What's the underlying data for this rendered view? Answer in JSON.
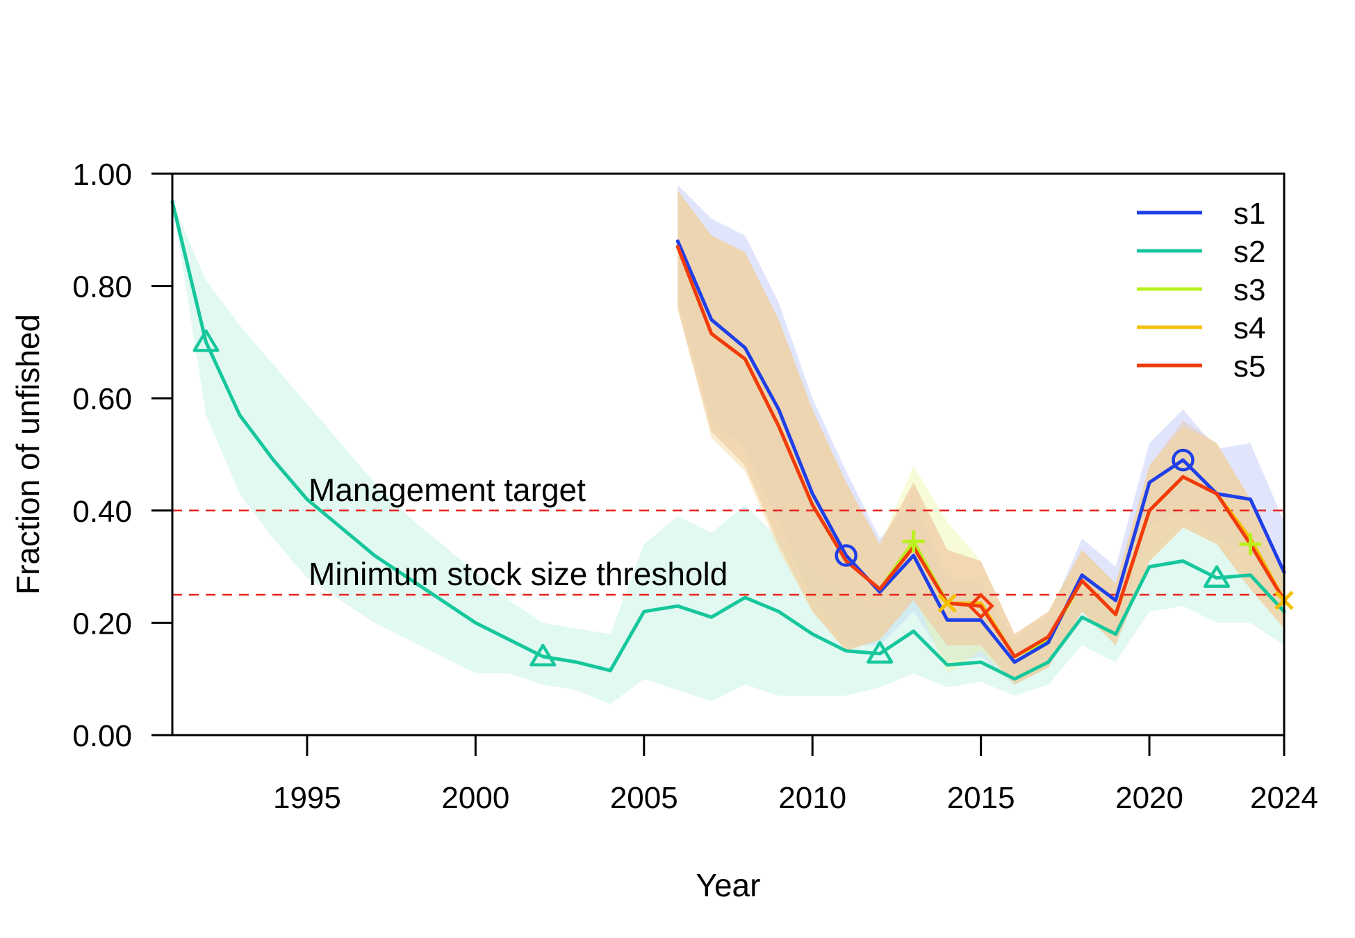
{
  "chart_data": {
    "type": "line",
    "xlabel": "Year",
    "ylabel": "Fraction of unfished",
    "xlim": [
      1991,
      2024
    ],
    "ylim": [
      0,
      1.0
    ],
    "x_ticks": [
      1995,
      2000,
      2005,
      2010,
      2015,
      2020,
      2024
    ],
    "x_tick_labels": [
      "1995",
      "2000",
      "2005",
      "2010",
      "2015",
      "2020",
      "2024"
    ],
    "y_ticks": [
      0,
      0.2,
      0.4,
      0.6,
      0.8,
      1.0
    ],
    "y_tick_labels": [
      "0.00",
      "0.20",
      "0.40",
      "0.60",
      "0.80",
      "1.00"
    ],
    "reference_lines": [
      {
        "label": "Management target",
        "y": 0.4,
        "color": "#E8231C",
        "style": "dashed"
      },
      {
        "label": "Minimum stock size threshold",
        "y": 0.25,
        "color": "#E8231C",
        "style": "dashed"
      },
      {
        "label": "",
        "y": 1.0,
        "color": "#BBBBBB",
        "style": "dashed"
      }
    ],
    "legend_position": "top-right",
    "series": [
      {
        "name": "s1",
        "color": "#1F3FE8",
        "band_color": "#AAB4F5",
        "marker": "circle",
        "marker_x": [
          2011,
          2021
        ],
        "x": [
          2006,
          2007,
          2008,
          2009,
          2010,
          2011,
          2012,
          2013,
          2014,
          2015,
          2016,
          2017,
          2018,
          2019,
          2020,
          2021,
          2022,
          2023,
          2024
        ],
        "values": [
          0.88,
          0.74,
          0.69,
          0.58,
          0.43,
          0.32,
          0.255,
          0.32,
          0.205,
          0.205,
          0.13,
          0.165,
          0.285,
          0.24,
          0.45,
          0.49,
          0.43,
          0.42,
          0.29
        ],
        "lower": [
          0.78,
          0.56,
          0.51,
          0.38,
          0.24,
          0.16,
          0.16,
          0.22,
          0.13,
          0.14,
          0.09,
          0.12,
          0.22,
          0.18,
          0.37,
          0.4,
          0.35,
          0.33,
          0.21
        ],
        "upper": [
          0.98,
          0.92,
          0.89,
          0.77,
          0.6,
          0.47,
          0.35,
          0.42,
          0.28,
          0.27,
          0.17,
          0.21,
          0.35,
          0.3,
          0.52,
          0.58,
          0.51,
          0.52,
          0.38
        ]
      },
      {
        "name": "s2",
        "color": "#17C79C",
        "band_color": "#BFF2E3",
        "marker": "triangle",
        "marker_x": [
          1992,
          2002,
          2012,
          2022
        ],
        "x": [
          1991,
          1992,
          1993,
          1994,
          1995,
          1996,
          1997,
          1998,
          1999,
          2000,
          2001,
          2002,
          2003,
          2004,
          2005,
          2006,
          2007,
          2008,
          2009,
          2010,
          2011,
          2012,
          2013,
          2014,
          2015,
          2016,
          2017,
          2018,
          2019,
          2020,
          2021,
          2022,
          2023,
          2024
        ],
        "values": [
          0.95,
          0.7,
          0.57,
          0.49,
          0.42,
          0.37,
          0.32,
          0.28,
          0.24,
          0.2,
          0.17,
          0.14,
          0.13,
          0.115,
          0.22,
          0.23,
          0.21,
          0.245,
          0.22,
          0.18,
          0.15,
          0.145,
          0.185,
          0.125,
          0.13,
          0.1,
          0.13,
          0.21,
          0.18,
          0.3,
          0.31,
          0.28,
          0.285,
          0.22
        ],
        "lower": [
          0.95,
          0.57,
          0.43,
          0.35,
          0.28,
          0.24,
          0.2,
          0.17,
          0.14,
          0.11,
          0.11,
          0.09,
          0.08,
          0.055,
          0.1,
          0.08,
          0.06,
          0.09,
          0.07,
          0.07,
          0.07,
          0.085,
          0.11,
          0.085,
          0.095,
          0.07,
          0.09,
          0.16,
          0.13,
          0.22,
          0.23,
          0.2,
          0.2,
          0.16
        ],
        "upper": [
          0.95,
          0.81,
          0.73,
          0.66,
          0.59,
          0.52,
          0.45,
          0.39,
          0.34,
          0.29,
          0.24,
          0.2,
          0.19,
          0.18,
          0.34,
          0.39,
          0.36,
          0.41,
          0.35,
          0.3,
          0.25,
          0.22,
          0.27,
          0.18,
          0.18,
          0.14,
          0.17,
          0.26,
          0.24,
          0.36,
          0.38,
          0.36,
          0.36,
          0.29
        ]
      },
      {
        "name": "s3",
        "color": "#B9F01E",
        "band_color": "#EEF7A8",
        "marker": "plus",
        "marker_x": [
          2013,
          2023
        ],
        "x": [
          2006,
          2007,
          2008,
          2009,
          2010,
          2011,
          2012,
          2013,
          2014,
          2015,
          2016,
          2017,
          2018,
          2019,
          2020,
          2021,
          2022,
          2023,
          2024
        ],
        "values": [
          0.87,
          0.715,
          0.67,
          0.55,
          0.41,
          0.31,
          0.26,
          0.345,
          0.235,
          0.23,
          0.14,
          0.17,
          0.275,
          0.215,
          0.4,
          0.46,
          0.43,
          0.34,
          0.24
        ],
        "lower": [
          0.76,
          0.54,
          0.48,
          0.34,
          0.22,
          0.15,
          0.17,
          0.25,
          0.11,
          0.15,
          0.09,
          0.12,
          0.22,
          0.16,
          0.31,
          0.37,
          0.34,
          0.26,
          0.19
        ],
        "upper": [
          0.97,
          0.89,
          0.86,
          0.74,
          0.58,
          0.45,
          0.34,
          0.48,
          0.38,
          0.31,
          0.18,
          0.22,
          0.33,
          0.27,
          0.48,
          0.55,
          0.52,
          0.42,
          0.29
        ]
      },
      {
        "name": "s4",
        "color": "#F5C000",
        "band_color": "#FAD9A0",
        "marker": "x",
        "marker_x": [
          2014,
          2024
        ],
        "x": [
          2006,
          2007,
          2008,
          2009,
          2010,
          2011,
          2012,
          2013,
          2014,
          2015,
          2016,
          2017,
          2018,
          2019,
          2020,
          2021,
          2022,
          2023,
          2024
        ],
        "values": [
          0.87,
          0.715,
          0.67,
          0.55,
          0.41,
          0.31,
          0.26,
          0.335,
          0.235,
          0.235,
          0.14,
          0.17,
          0.275,
          0.215,
          0.4,
          0.46,
          0.43,
          0.35,
          0.24
        ],
        "lower": [
          0.76,
          0.53,
          0.47,
          0.33,
          0.22,
          0.15,
          0.17,
          0.24,
          0.16,
          0.16,
          0.09,
          0.12,
          0.22,
          0.16,
          0.31,
          0.37,
          0.34,
          0.26,
          0.19
        ],
        "upper": [
          0.97,
          0.89,
          0.86,
          0.74,
          0.58,
          0.45,
          0.34,
          0.45,
          0.33,
          0.31,
          0.18,
          0.22,
          0.33,
          0.27,
          0.48,
          0.55,
          0.52,
          0.42,
          0.29
        ]
      },
      {
        "name": "s5",
        "color": "#F23A0C",
        "band_color": "#E8C4A8",
        "marker": "diamond",
        "marker_x": [
          2015
        ],
        "x": [
          2006,
          2007,
          2008,
          2009,
          2010,
          2011,
          2012,
          2013,
          2014,
          2015,
          2016,
          2017,
          2018,
          2019,
          2020,
          2021,
          2022,
          2023,
          2024
        ],
        "values": [
          0.87,
          0.715,
          0.67,
          0.55,
          0.41,
          0.31,
          0.26,
          0.335,
          0.235,
          0.23,
          0.14,
          0.175,
          0.275,
          0.215,
          0.4,
          0.46,
          0.43,
          0.34,
          0.24
        ],
        "lower": [
          0.76,
          0.54,
          0.48,
          0.34,
          0.22,
          0.15,
          0.17,
          0.24,
          0.16,
          0.16,
          0.09,
          0.12,
          0.22,
          0.16,
          0.31,
          0.37,
          0.34,
          0.26,
          0.19
        ],
        "upper": [
          0.97,
          0.89,
          0.86,
          0.74,
          0.58,
          0.45,
          0.34,
          0.45,
          0.33,
          0.31,
          0.18,
          0.22,
          0.33,
          0.27,
          0.48,
          0.56,
          0.52,
          0.42,
          0.29
        ]
      }
    ]
  }
}
